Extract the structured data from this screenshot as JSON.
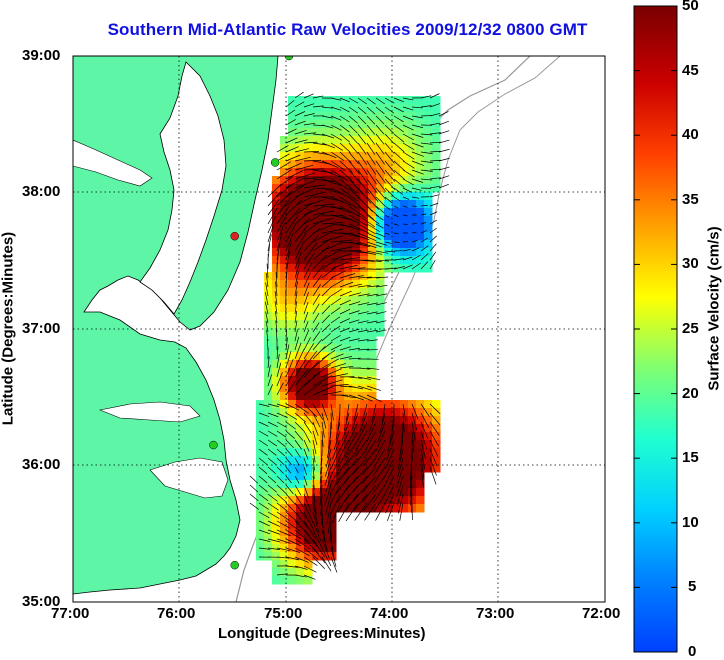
{
  "title": "Southern Mid-Atlantic Raw Velocities 2009/12/32 0800 GMT",
  "axes": {
    "xlabel": "Longitude (Degrees:Minutes)",
    "ylabel": "Latitude (Degrees:Minutes)",
    "x_ticks": [
      "77:00",
      "76:00",
      "75:00",
      "74:00",
      "73:00",
      "72:00"
    ],
    "y_ticks": [
      "39:00",
      "38:00",
      "37:00",
      "36:00",
      "35:00"
    ],
    "grid": "dotted"
  },
  "colorbar": {
    "label": "Surface Velocity (cm/s)",
    "ticks": [
      "50",
      "45",
      "40",
      "35",
      "30",
      "25",
      "20",
      "15",
      "10",
      "5",
      "0"
    ],
    "range": [
      0,
      50
    ],
    "colormap": "jet"
  },
  "colors": {
    "title": "#1010e0",
    "land": "#5ef5a6",
    "station_green": "#22cc22",
    "station_red": "#dd2222"
  },
  "stations": [
    {
      "lon": -74.97,
      "lat": 39.0,
      "color": "green"
    },
    {
      "lon": -75.1,
      "lat": 38.22,
      "color": "green"
    },
    {
      "lon": -75.48,
      "lat": 37.68,
      "color": "red"
    },
    {
      "lon": -75.68,
      "lat": 36.15,
      "color": "green"
    },
    {
      "lon": -75.48,
      "lat": 35.27,
      "color": "green"
    }
  ]
}
